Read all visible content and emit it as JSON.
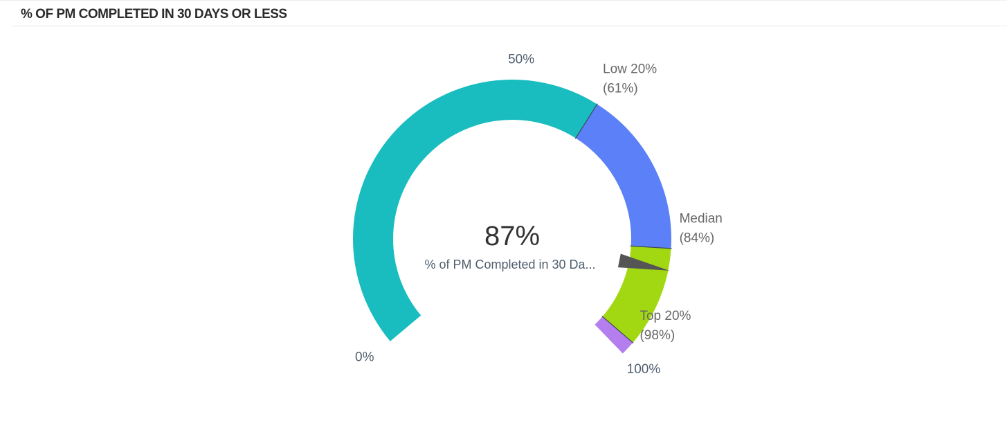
{
  "panel": {
    "title": "% OF PM COMPLETED IN 30 DAYS OR LESS"
  },
  "chart_data": {
    "type": "gauge",
    "min": 0,
    "max": 100,
    "value": 87,
    "value_label": "87%",
    "metric_label": "% of PM Completed in 30 Da...",
    "scale_labels": [
      {
        "value": 0,
        "text": "0%"
      },
      {
        "value": 50,
        "text": "50%"
      },
      {
        "value": 100,
        "text": "100%"
      }
    ],
    "bands": [
      {
        "from": 0,
        "to": 61,
        "color": "#19bdbf"
      },
      {
        "from": 61,
        "to": 84,
        "color": "#5b80f7"
      },
      {
        "from": 84,
        "to": 98,
        "color": "#a2d812"
      },
      {
        "from": 98,
        "to": 100,
        "color": "#b57eee"
      }
    ],
    "thresholds": [
      {
        "value": 61,
        "name": "Low 20%",
        "text": "(61%)"
      },
      {
        "value": 84,
        "name": "Median",
        "text": "(84%)"
      },
      {
        "value": 98,
        "name": "Top 20%",
        "text": "(98%)"
      }
    ],
    "pointer_color": "#555555"
  }
}
